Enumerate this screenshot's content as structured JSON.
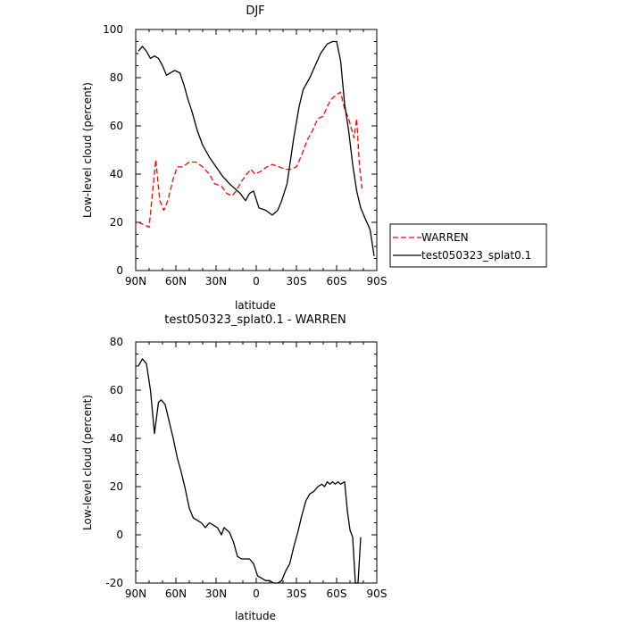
{
  "chart_data": [
    {
      "type": "line",
      "title": "DJF",
      "xlabel": "latitude",
      "ylabel": "Low-level cloud (percent)",
      "xlim": [
        -90,
        90
      ],
      "ylim": [
        0,
        100
      ],
      "x_ticks": [
        {
          "value": -90,
          "label": "90N"
        },
        {
          "value": -60,
          "label": "60N"
        },
        {
          "value": -30,
          "label": "30N"
        },
        {
          "value": 0,
          "label": "0"
        },
        {
          "value": 30,
          "label": "30S"
        },
        {
          "value": 60,
          "label": "60S"
        },
        {
          "value": 90,
          "label": "90S"
        }
      ],
      "y_ticks": [
        0,
        20,
        40,
        60,
        80,
        100
      ],
      "legend_position": "right",
      "series": [
        {
          "name": "WARREN",
          "color": "#ff0000",
          "style": "dashed",
          "points": [
            [
              -88,
              20
            ],
            [
              -84,
              19
            ],
            [
              -80,
              18
            ],
            [
              -75,
              46
            ],
            [
              -72,
              29
            ],
            [
              -69,
              25
            ],
            [
              -66,
              29
            ],
            [
              -62,
              38
            ],
            [
              -59,
              43
            ],
            [
              -55,
              43
            ],
            [
              -50,
              45
            ],
            [
              -45,
              45
            ],
            [
              -40,
              43
            ],
            [
              -35,
              40
            ],
            [
              -31,
              36
            ],
            [
              -26,
              35
            ],
            [
              -22,
              32
            ],
            [
              -18,
              31
            ],
            [
              -15,
              33
            ],
            [
              -11,
              37
            ],
            [
              -7,
              40
            ],
            [
              -4,
              42
            ],
            [
              -1,
              40
            ],
            [
              3,
              41
            ],
            [
              8,
              43
            ],
            [
              12,
              44
            ],
            [
              17,
              43
            ],
            [
              22,
              42
            ],
            [
              26,
              42
            ],
            [
              30,
              43
            ],
            [
              34,
              48
            ],
            [
              38,
              54
            ],
            [
              42,
              58
            ],
            [
              46,
              63
            ],
            [
              50,
              64
            ],
            [
              53,
              68
            ],
            [
              56,
              71
            ],
            [
              60,
              73
            ],
            [
              63,
              74
            ],
            [
              66,
              67
            ],
            [
              69,
              63
            ],
            [
              71,
              59
            ],
            [
              73,
              55
            ],
            [
              75,
              63
            ],
            [
              77,
              44
            ],
            [
              79,
              34
            ]
          ]
        },
        {
          "name": "test050323_splat0.1",
          "color": "#000000",
          "style": "solid",
          "points": [
            [
              -88,
              91
            ],
            [
              -85,
              93
            ],
            [
              -82,
              91
            ],
            [
              -79,
              88
            ],
            [
              -76,
              89
            ],
            [
              -73,
              88
            ],
            [
              -70,
              85
            ],
            [
              -67,
              81
            ],
            [
              -64,
              82
            ],
            [
              -61,
              83
            ],
            [
              -57,
              82
            ],
            [
              -54,
              77
            ],
            [
              -51,
              71
            ],
            [
              -48,
              66
            ],
            [
              -44,
              58
            ],
            [
              -40,
              52
            ],
            [
              -35,
              47
            ],
            [
              -30,
              43
            ],
            [
              -25,
              39
            ],
            [
              -20,
              36
            ],
            [
              -16,
              34
            ],
            [
              -12,
              32
            ],
            [
              -8,
              29
            ],
            [
              -5,
              32
            ],
            [
              -2,
              33
            ],
            [
              2,
              26
            ],
            [
              7,
              25
            ],
            [
              12,
              23
            ],
            [
              16,
              25
            ],
            [
              19,
              29
            ],
            [
              23,
              36
            ],
            [
              28,
              55
            ],
            [
              32,
              68
            ],
            [
              35,
              75
            ],
            [
              40,
              80
            ],
            [
              44,
              85
            ],
            [
              48,
              90
            ],
            [
              53,
              94
            ],
            [
              57,
              95
            ],
            [
              60,
              95
            ],
            [
              63,
              87
            ],
            [
              66,
              69
            ],
            [
              69,
              58
            ],
            [
              72,
              44
            ],
            [
              75,
              33
            ],
            [
              78,
              26
            ],
            [
              81,
              22
            ],
            [
              85,
              17
            ],
            [
              88,
              6
            ]
          ]
        }
      ]
    },
    {
      "type": "line",
      "title": "test050323_splat0.1 - WARREN",
      "xlabel": "latitude",
      "ylabel": "Low-level cloud (percent)",
      "xlim": [
        -90,
        90
      ],
      "ylim": [
        -20,
        80
      ],
      "x_ticks": [
        {
          "value": -90,
          "label": "90N"
        },
        {
          "value": -60,
          "label": "60N"
        },
        {
          "value": -30,
          "label": "30N"
        },
        {
          "value": 0,
          "label": "0"
        },
        {
          "value": 30,
          "label": "30S"
        },
        {
          "value": 60,
          "label": "60S"
        },
        {
          "value": 90,
          "label": "90S"
        }
      ],
      "y_ticks": [
        -20,
        0,
        20,
        40,
        60,
        80
      ],
      "series": [
        {
          "name": "",
          "color": "#000000",
          "style": "solid",
          "points": [
            [
              -88,
              70
            ],
            [
              -85,
              73
            ],
            [
              -82,
              71
            ],
            [
              -79,
              60
            ],
            [
              -76,
              42
            ],
            [
              -73,
              55
            ],
            [
              -71,
              56
            ],
            [
              -68,
              54
            ],
            [
              -65,
              47
            ],
            [
              -62,
              40
            ],
            [
              -59,
              32
            ],
            [
              -56,
              26
            ],
            [
              -53,
              19
            ],
            [
              -50,
              11
            ],
            [
              -47,
              7
            ],
            [
              -44,
              6
            ],
            [
              -41,
              5
            ],
            [
              -38,
              3
            ],
            [
              -35,
              5
            ],
            [
              -32,
              4
            ],
            [
              -29,
              3
            ],
            [
              -26,
              0
            ],
            [
              -24,
              3
            ],
            [
              -22,
              2
            ],
            [
              -20,
              1
            ],
            [
              -17,
              -3
            ],
            [
              -14,
              -9
            ],
            [
              -11,
              -10
            ],
            [
              -8,
              -10
            ],
            [
              -5,
              -10
            ],
            [
              -2,
              -12
            ],
            [
              1,
              -17
            ],
            [
              4,
              -18
            ],
            [
              7,
              -19
            ],
            [
              10,
              -19
            ],
            [
              13,
              -20
            ],
            [
              16,
              -20
            ],
            [
              19,
              -19
            ],
            [
              22,
              -15
            ],
            [
              25,
              -12
            ],
            [
              28,
              -5
            ],
            [
              31,
              1
            ],
            [
              34,
              8
            ],
            [
              37,
              14
            ],
            [
              40,
              17
            ],
            [
              43,
              18
            ],
            [
              46,
              20
            ],
            [
              49,
              21
            ],
            [
              51,
              20
            ],
            [
              53,
              22
            ],
            [
              55,
              21
            ],
            [
              57,
              22
            ],
            [
              59,
              21
            ],
            [
              61,
              22
            ],
            [
              63,
              21
            ],
            [
              66,
              22
            ],
            [
              68,
              10
            ],
            [
              70,
              2
            ],
            [
              72,
              -1
            ],
            [
              74,
              -20
            ],
            [
              76,
              -20
            ],
            [
              78,
              -1
            ]
          ]
        }
      ]
    }
  ]
}
